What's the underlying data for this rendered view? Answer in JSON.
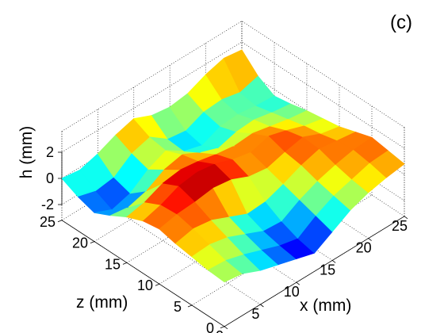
{
  "panel_label": "(c)",
  "chart_data": {
    "type": "surface",
    "xlabel": "x (mm)",
    "ylabel": "z (mm)",
    "zlabel": "h (mm)",
    "xlim": [
      0,
      25
    ],
    "ylim": [
      0,
      25
    ],
    "zlim": [
      -2,
      2
    ],
    "x_ticks": [
      0,
      5,
      10,
      15,
      20,
      25
    ],
    "y_ticks": [
      0,
      5,
      10,
      15,
      20,
      25
    ],
    "z_ticks": [
      -2,
      0,
      2
    ],
    "colormap": "jet",
    "grid": true,
    "surface_rows_z": [
      0,
      2.5,
      5,
      7.5,
      10,
      12.5,
      15,
      17.5,
      20,
      22.5,
      25
    ],
    "surface_cols_x": [
      0,
      2.5,
      5,
      7.5,
      10,
      12.5,
      15,
      17.5,
      20,
      22.5,
      25
    ],
    "surface_h": [
      [
        0.2,
        0.0,
        -0.6,
        -1.0,
        -1.4,
        -1.8,
        -1.0,
        -0.2,
        0.3,
        0.6,
        0.8
      ],
      [
        0.3,
        0.2,
        -0.2,
        -0.7,
        -1.2,
        -1.5,
        -0.6,
        0.1,
        0.5,
        0.9,
        1.0
      ],
      [
        0.5,
        0.6,
        0.3,
        -0.3,
        -0.9,
        -1.0,
        -0.2,
        0.4,
        0.8,
        1.1,
        1.2
      ],
      [
        0.7,
        1.0,
        0.8,
        0.2,
        -0.4,
        -0.3,
        0.2,
        0.8,
        1.2,
        1.0,
        0.8
      ],
      [
        1.0,
        1.3,
        1.4,
        1.6,
        1.4,
        0.8,
        0.6,
        1.0,
        1.3,
        0.7,
        0.4
      ],
      [
        0.8,
        1.2,
        1.8,
        2.0,
        1.8,
        1.3,
        1.0,
        1.4,
        1.0,
        0.5,
        0.2
      ],
      [
        0.3,
        0.6,
        1.2,
        1.4,
        1.2,
        0.9,
        0.7,
        0.8,
        0.5,
        0.2,
        0.0
      ],
      [
        -0.4,
        -0.6,
        -0.2,
        0.6,
        0.9,
        0.2,
        -0.3,
        0.1,
        0.2,
        -0.1,
        -0.3
      ],
      [
        -1.0,
        -1.6,
        -1.2,
        -0.2,
        0.4,
        -0.5,
        -0.9,
        -0.3,
        -0.2,
        -0.4,
        -0.5
      ],
      [
        -0.6,
        -1.0,
        -0.8,
        0.2,
        0.6,
        -0.4,
        -0.6,
        0.0,
        0.1,
        -0.2,
        0.2
      ],
      [
        0.0,
        -0.2,
        0.2,
        0.8,
        1.2,
        0.6,
        0.4,
        0.6,
        1.2,
        1.6,
        1.4
      ]
    ]
  }
}
